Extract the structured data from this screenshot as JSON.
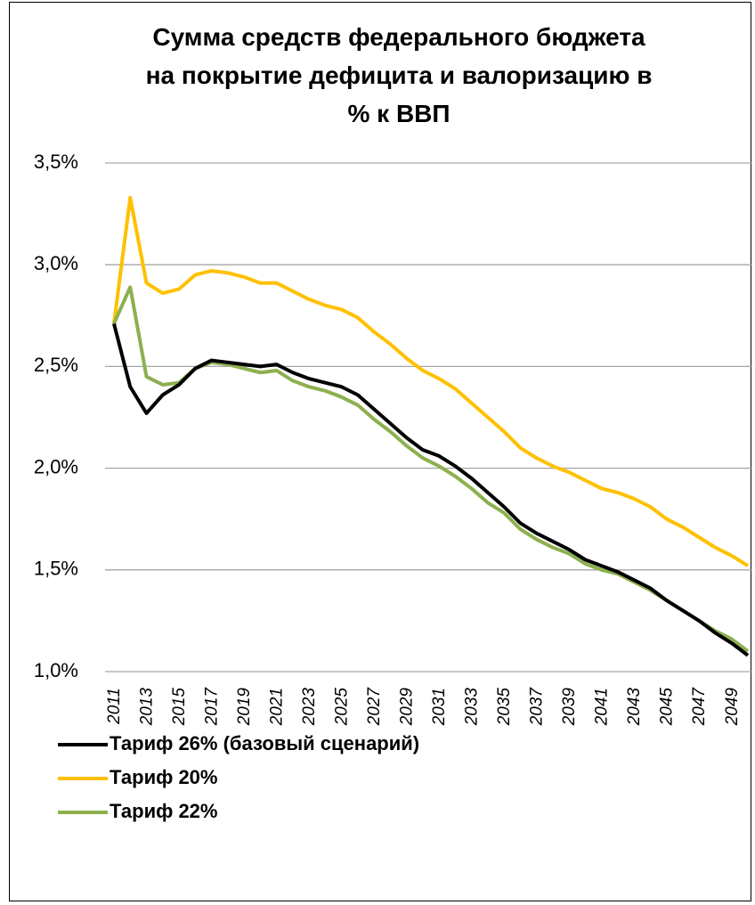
{
  "chart_data": {
    "type": "line",
    "title": "Сумма средств федерального бюджета\nна покрытие дефицита и валоризацию в\n% к ВВП",
    "categories": [
      "2011",
      null,
      "2013",
      null,
      "2015",
      null,
      "2017",
      null,
      "2019",
      null,
      "2021",
      null,
      "2023",
      null,
      "2025",
      null,
      "2027",
      null,
      "2029",
      null,
      "2031",
      null,
      "2033",
      null,
      "2035",
      null,
      "2037",
      null,
      "2039",
      null,
      "2041",
      null,
      "2043",
      null,
      "2045",
      null,
      "2047",
      null,
      "2049",
      null
    ],
    "series": [
      {
        "name": "Тариф 26% (базовый сценарий)",
        "color": "#000000",
        "values": [
          2.71,
          2.4,
          2.27,
          2.36,
          2.41,
          2.49,
          2.53,
          2.52,
          2.51,
          2.5,
          2.51,
          2.47,
          2.44,
          2.42,
          2.4,
          2.36,
          2.29,
          2.22,
          2.15,
          2.09,
          2.06,
          2.01,
          1.95,
          1.88,
          1.81,
          1.73,
          1.68,
          1.64,
          1.6,
          1.55,
          1.52,
          1.49,
          1.45,
          1.41,
          1.35,
          1.3,
          1.25,
          1.19,
          1.14,
          1.08
        ]
      },
      {
        "name": "Тариф 20%",
        "color": "#ffc000",
        "values": [
          2.71,
          3.33,
          2.91,
          2.86,
          2.88,
          2.95,
          2.97,
          2.96,
          2.94,
          2.91,
          2.91,
          2.87,
          2.83,
          2.8,
          2.78,
          2.74,
          2.67,
          2.61,
          2.54,
          2.48,
          2.44,
          2.39,
          2.32,
          2.25,
          2.18,
          2.1,
          2.05,
          2.01,
          1.98,
          1.94,
          1.9,
          1.88,
          1.85,
          1.81,
          1.75,
          1.71,
          1.66,
          1.61,
          1.57,
          1.52
        ]
      },
      {
        "name": "Тариф 22%",
        "color": "#8db04f",
        "values": [
          2.71,
          2.89,
          2.45,
          2.41,
          2.42,
          2.49,
          2.52,
          2.51,
          2.49,
          2.47,
          2.48,
          2.43,
          2.4,
          2.38,
          2.35,
          2.31,
          2.24,
          2.18,
          2.11,
          2.05,
          2.01,
          1.96,
          1.9,
          1.83,
          1.78,
          1.7,
          1.65,
          1.61,
          1.58,
          1.53,
          1.5,
          1.48,
          1.44,
          1.4,
          1.35,
          1.3,
          1.25,
          1.2,
          1.16,
          1.1
        ]
      }
    ],
    "ylim": [
      1.0,
      3.5
    ],
    "yticks": [
      {
        "value": 1.0,
        "label": "1,0%"
      },
      {
        "value": 1.5,
        "label": "1,5%"
      },
      {
        "value": 2.0,
        "label": "2,0%"
      },
      {
        "value": 2.5,
        "label": "2,5%"
      },
      {
        "value": 3.0,
        "label": "3,0%"
      },
      {
        "value": 3.5,
        "label": "3,5%"
      }
    ],
    "grid": true,
    "legend": "bottom"
  }
}
